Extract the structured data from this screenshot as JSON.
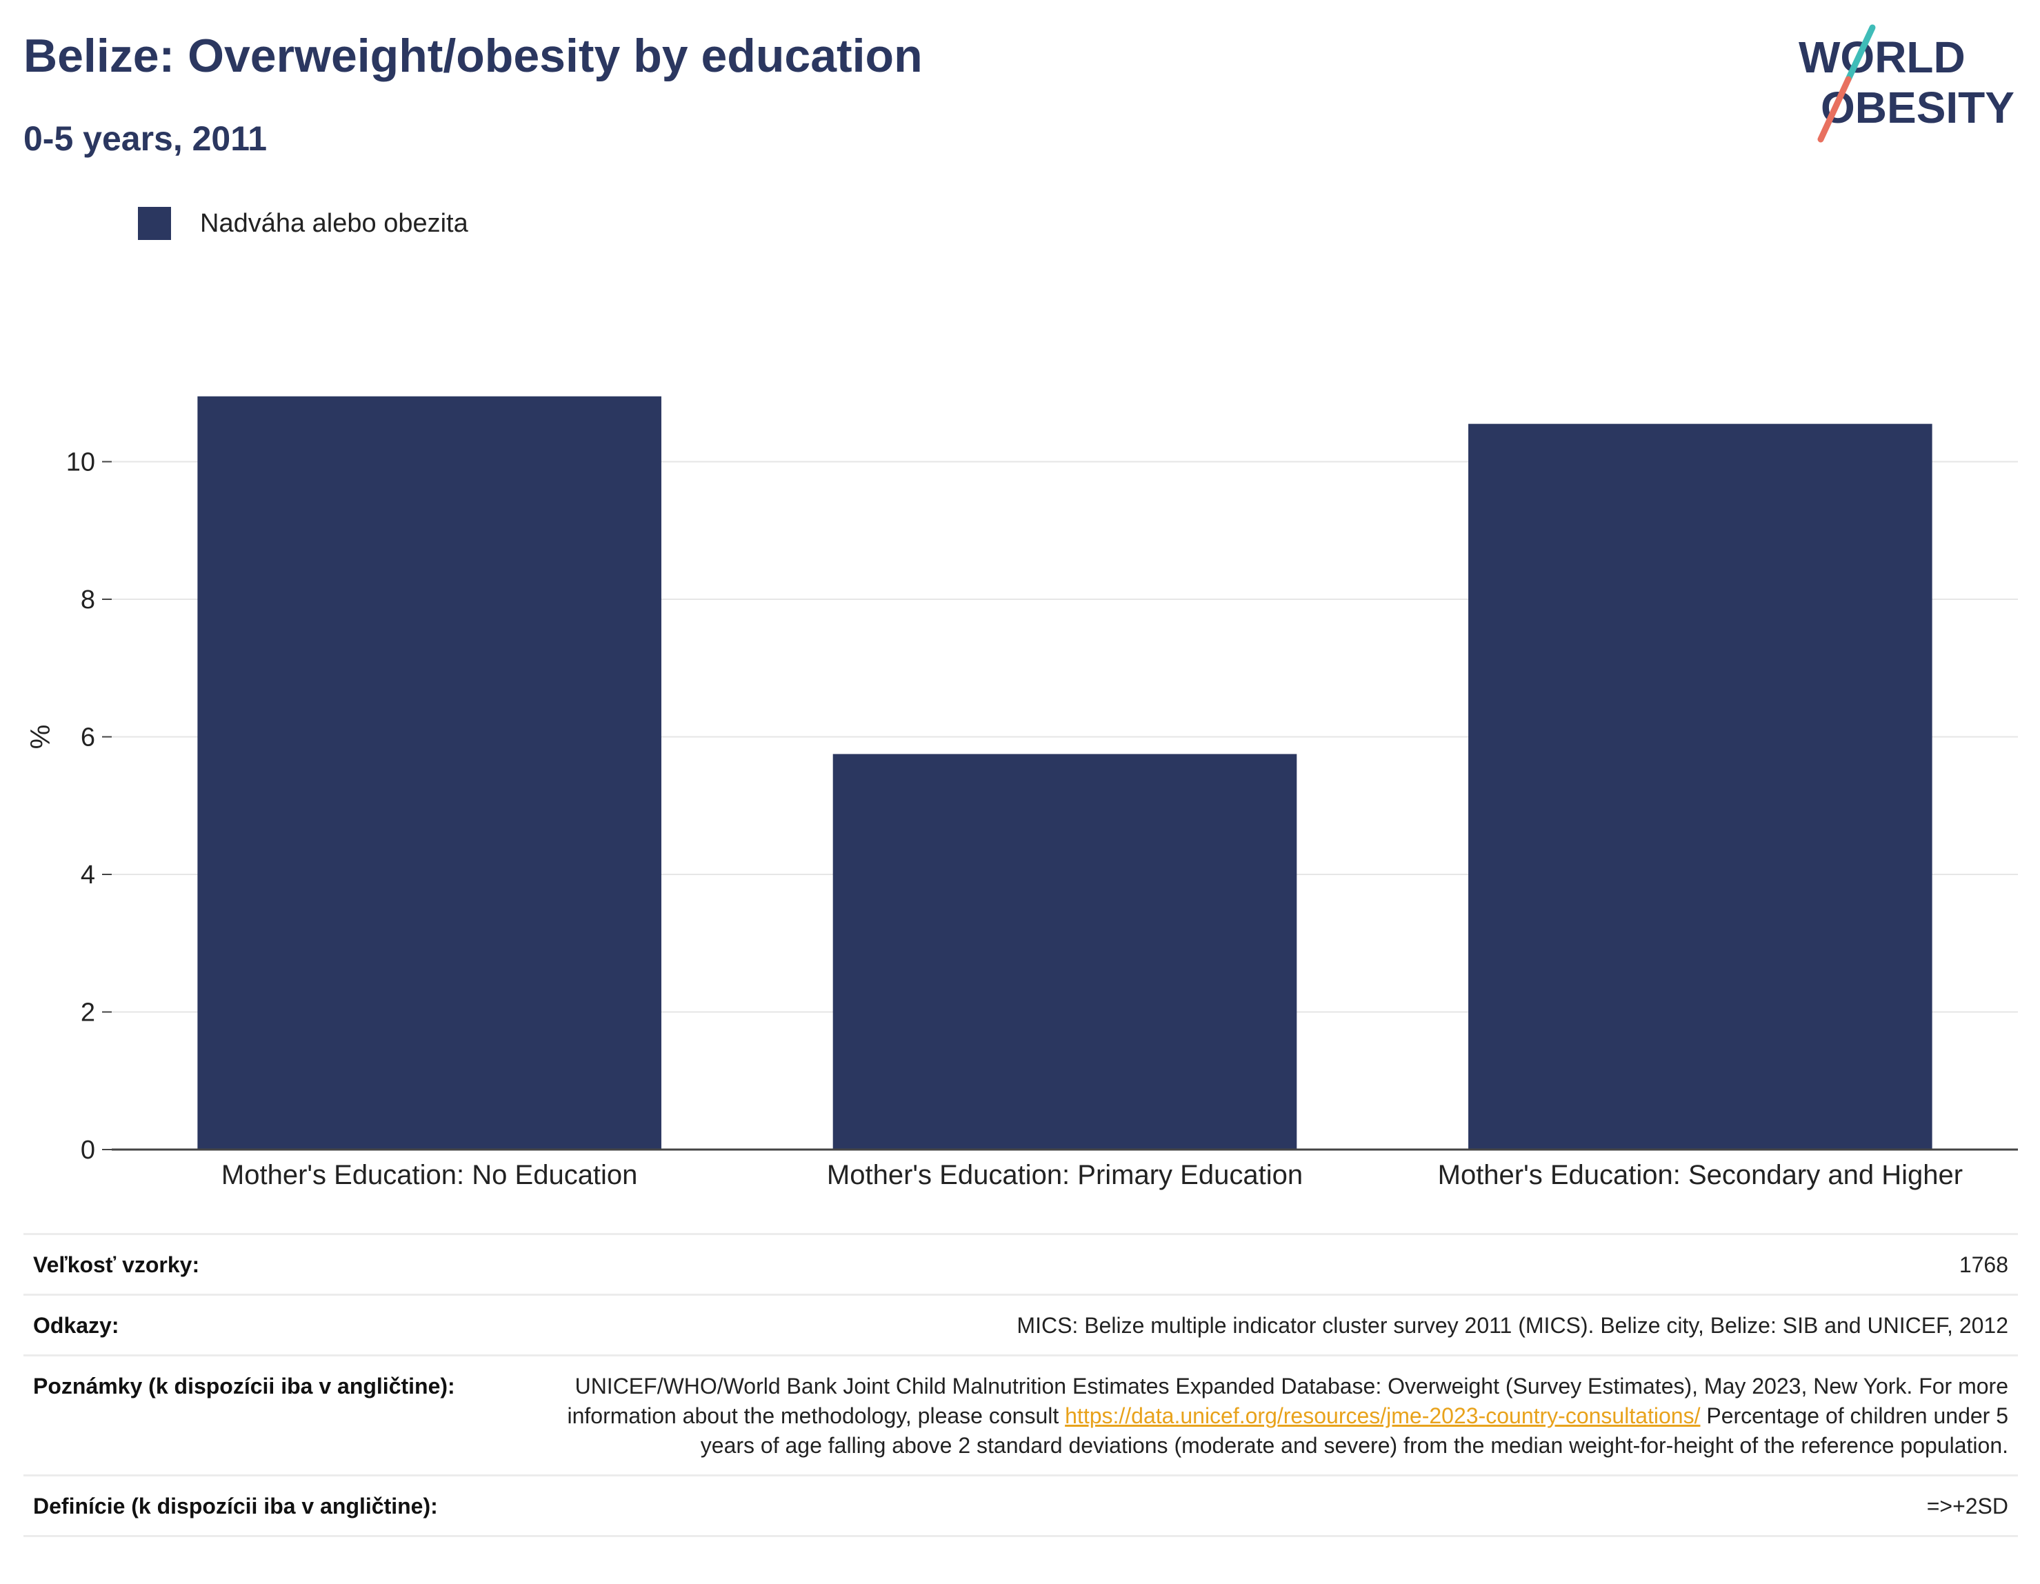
{
  "header": {
    "title": "Belize: Overweight/obesity by education",
    "subtitle": "0-5 years, 2011"
  },
  "logo": {
    "line1": "WORLD",
    "line2": "OBESITY",
    "colors": {
      "text": "#2b3760",
      "slash_top": "#3fbcb8",
      "slash_bottom": "#e8705f"
    }
  },
  "legend": {
    "label": "Nadváha alebo obezita",
    "color": "#2b3760"
  },
  "chart_data": {
    "type": "bar",
    "categories": [
      "Mother's Education: No Education",
      "Mother's Education: Primary Education",
      "Mother's Education: Secondary and Higher"
    ],
    "series": [
      {
        "name": "Nadváha alebo obezita",
        "values": [
          10.95,
          5.75,
          10.55
        ],
        "color": "#2b3760"
      }
    ],
    "ylabel": "%",
    "ylim": [
      0,
      12
    ],
    "yticks": [
      0,
      2,
      4,
      6,
      8,
      10
    ],
    "grid": true,
    "legend_position": "top-left"
  },
  "meta": {
    "rows": [
      {
        "key": "Veľkosť vzorky:",
        "value": "1768"
      },
      {
        "key": "Odkazy:",
        "value": "MICS: Belize multiple indicator cluster survey 2011 (MICS). Belize city, Belize: SIB and UNICEF, 2012"
      },
      {
        "key": "Poznámky (k dispozícii iba v angličtine):",
        "value_before": "UNICEF/WHO/World Bank Joint Child Malnutrition Estimates Expanded Database: Overweight (Survey Estimates), May 2023, New York. For more information about the methodology, please consult",
        "link": "https://data.unicef.org/resources/jme-2023-country-consultations/",
        "value_after": "Percentage of children under 5 years of age falling above 2 standard deviations (moderate and severe) from the median weight-for-height of the reference population."
      },
      {
        "key": "Definície (k dispozícii iba v angličtine):",
        "value": "=>+2SD"
      }
    ]
  }
}
